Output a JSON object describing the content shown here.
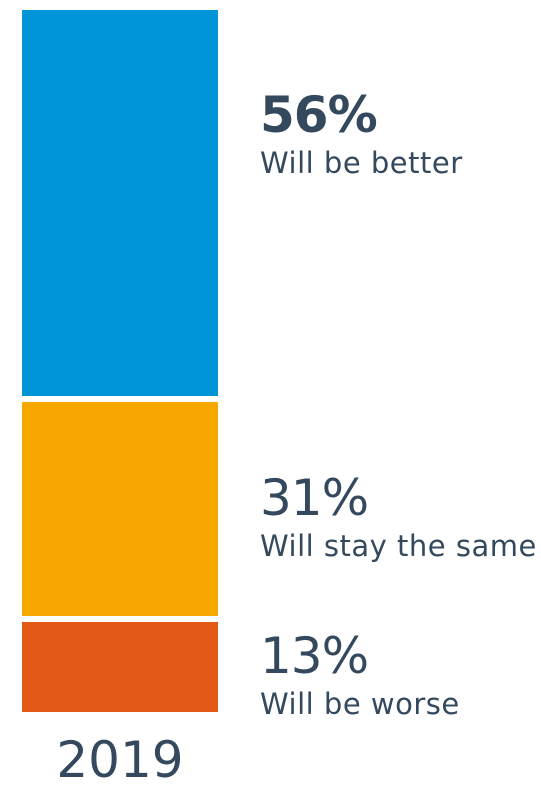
{
  "chart_data": {
    "type": "bar",
    "stacked": true,
    "categories": [
      "2019"
    ],
    "series": [
      {
        "name": "Will be better",
        "value": 56,
        "value_label": "56%",
        "color": "#0095D9",
        "emphasis": true
      },
      {
        "name": "Will stay the same",
        "value": 31,
        "value_label": "31%",
        "color": "#F7A800",
        "emphasis": false
      },
      {
        "name": "Will be worse",
        "value": 13,
        "value_label": "13%",
        "color": "#E35A17",
        "emphasis": false
      }
    ],
    "unit": "%",
    "total": 100
  }
}
